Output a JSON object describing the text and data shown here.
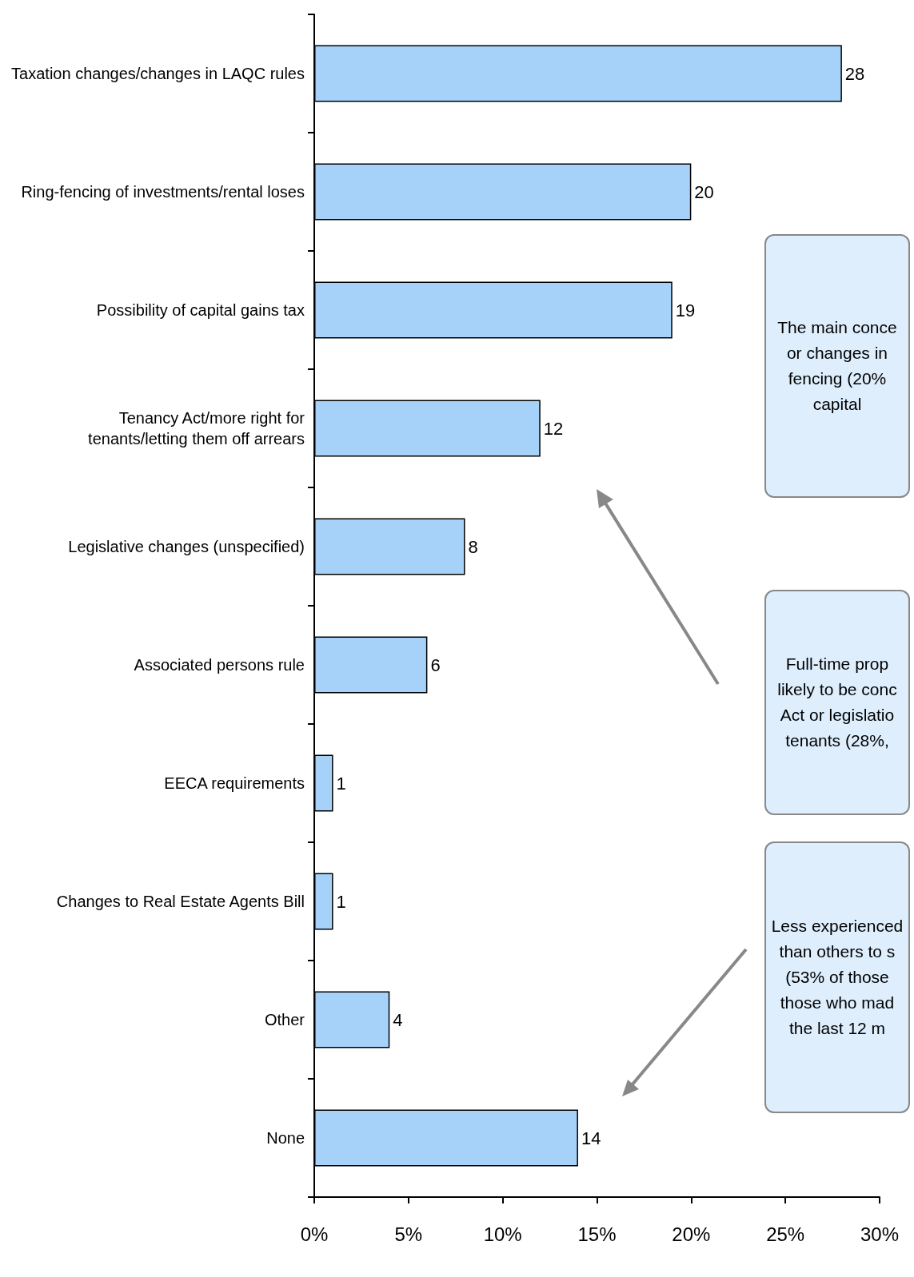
{
  "chart_data": {
    "type": "bar",
    "orientation": "horizontal",
    "categories": [
      "Taxation changes/changes in LAQC rules",
      "Ring-fencing of investments/rental loses",
      "Possibility of capital gains tax",
      "Tenancy Act/more right for\ntenants/letting them off arrears",
      "Legislative changes (unspecified)",
      "Associated persons rule",
      "EECA requirements",
      "Changes to Real Estate Agents Bill",
      "Other",
      "None"
    ],
    "values": [
      28,
      20,
      19,
      12,
      8,
      6,
      1,
      1,
      4,
      14
    ],
    "color": "#a6d2fa",
    "xlim": [
      0,
      30
    ],
    "xticks": [
      {
        "value": 0,
        "label": "0%"
      },
      {
        "value": 5,
        "label": "5%"
      },
      {
        "value": 10,
        "label": "10%"
      },
      {
        "value": 15,
        "label": "15%"
      },
      {
        "value": 20,
        "label": "20%"
      },
      {
        "value": 25,
        "label": "25%"
      },
      {
        "value": 30,
        "label": "30%"
      }
    ],
    "data_labels": true,
    "grid": false,
    "annotations": [
      "The main conce\nor changes in\nfencing (20%\ncapital",
      "Full-time prop\nlikely to be conc\nAct or legislatio\ntenants (28%,",
      "Less experienced\nthan others to s\n(53% of those\nthose who mad\nthe last 12 m"
    ]
  }
}
